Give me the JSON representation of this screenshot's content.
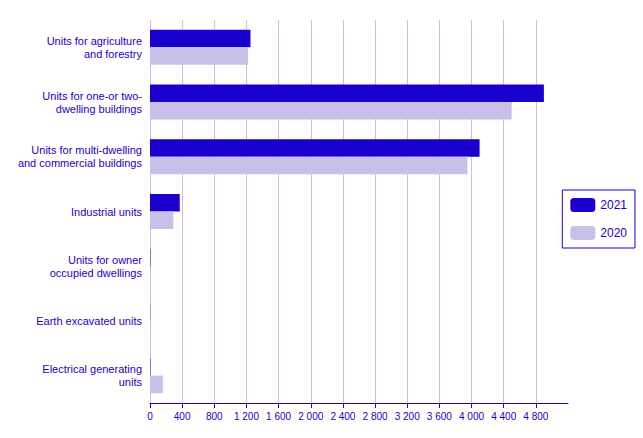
{
  "chart_data": {
    "type": "bar",
    "orientation": "horizontal",
    "categories": [
      "Units for agriculture\nand forestry",
      "Units for one-or two-\ndwelling buildings",
      "Units for multi-dwelling\nand commercial buildings",
      "Industrial units",
      "Units for owner\noccupied dwellings",
      "Earth excavated units",
      "Electrical generating\nunits"
    ],
    "series": [
      {
        "name": "2021",
        "color": "#1a00cc",
        "values": [
          1250,
          4900,
          4100,
          370,
          5,
          2,
          5
        ]
      },
      {
        "name": "2020",
        "color": "#c8c0e8",
        "values": [
          1220,
          4500,
          3950,
          290,
          4,
          1,
          160
        ]
      }
    ],
    "xlim": [
      0,
      5200
    ],
    "xticks": [
      0,
      400,
      800,
      {
        "value": 1200,
        "label": "1 200"
      },
      {
        "value": 1600,
        "label": "1 600"
      },
      {
        "value": 2000,
        "label": "2 000"
      },
      {
        "value": 2400,
        "label": "2 400"
      },
      {
        "value": 2800,
        "label": "2 800"
      },
      {
        "value": 3200,
        "label": "3 200"
      },
      {
        "value": 3600,
        "label": "3 600"
      },
      {
        "value": 4000,
        "label": "4 000"
      },
      {
        "value": 4400,
        "label": "4 400"
      },
      {
        "value": 4800,
        "label": "4 800"
      }
    ],
    "grid": true,
    "legend": "right"
  }
}
